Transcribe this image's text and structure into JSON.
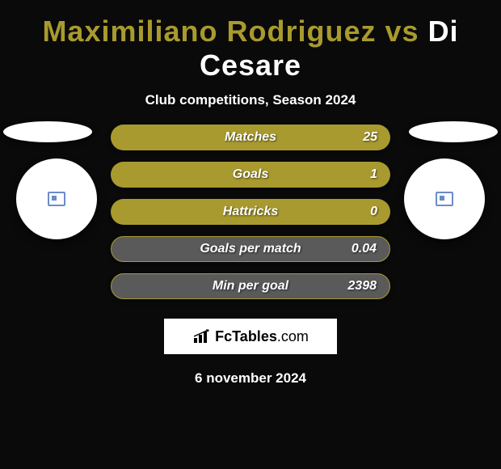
{
  "header": {
    "player1": "Maximiliano Rodriguez",
    "vs": "vs",
    "player2": "Di Cesare",
    "player1_color": "#a89a2e",
    "player2_color": "#ffffff",
    "subtitle": "Club competitions, Season 2024"
  },
  "badges": {
    "left_color": "#6b8cc7",
    "right_color": "#6b8cc7"
  },
  "stats": {
    "bar_fill_color": "#a89a2e",
    "bar_empty_color": "#5a5a5a",
    "rows": [
      {
        "label": "Matches",
        "value": "25",
        "filled": true
      },
      {
        "label": "Goals",
        "value": "1",
        "filled": true
      },
      {
        "label": "Hattricks",
        "value": "0",
        "filled": true
      },
      {
        "label": "Goals per match",
        "value": "0.04",
        "filled": false
      },
      {
        "label": "Min per goal",
        "value": "2398",
        "filled": false
      }
    ]
  },
  "footer": {
    "logo_text_main": "FcTables",
    "logo_text_suffix": ".com",
    "date": "6 november 2024"
  },
  "colors": {
    "background": "#0a0a0a",
    "text_white": "#ffffff"
  }
}
